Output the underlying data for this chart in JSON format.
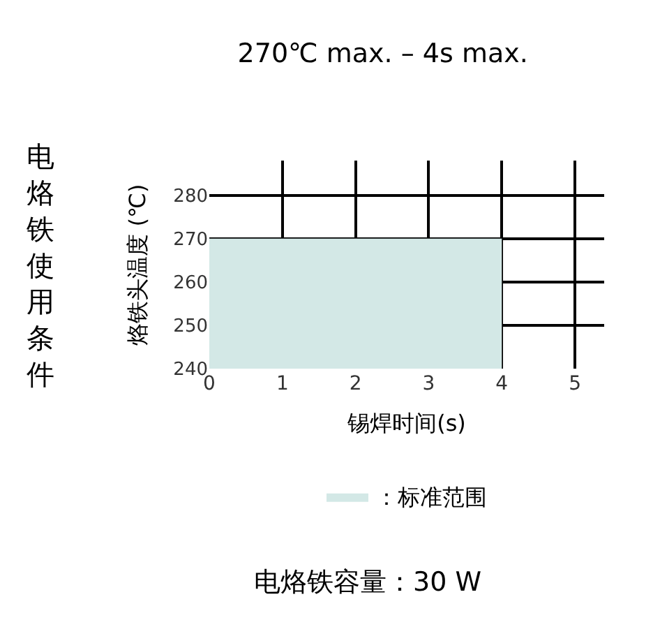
{
  "chart_data": {
    "type": "area",
    "title": "270℃ max. – 4s max.",
    "xlabel": "锡焊时间(s)",
    "ylabel": "烙铁头温度 (℃)",
    "x": [
      0,
      4
    ],
    "series": [
      {
        "name": "：标准范围",
        "color": "#d3e8e6",
        "values": [
          270,
          270
        ]
      }
    ],
    "xlim": [
      0,
      5.4
    ],
    "ylim": [
      240,
      288
    ],
    "xticks": [
      0,
      1,
      2,
      3,
      4,
      5
    ],
    "yticks": [
      240,
      250,
      260,
      270,
      280
    ],
    "grid": true,
    "legend": "bottom",
    "annotations": [
      "电烙铁使用条件",
      "电烙铁容量：30 W"
    ]
  }
}
